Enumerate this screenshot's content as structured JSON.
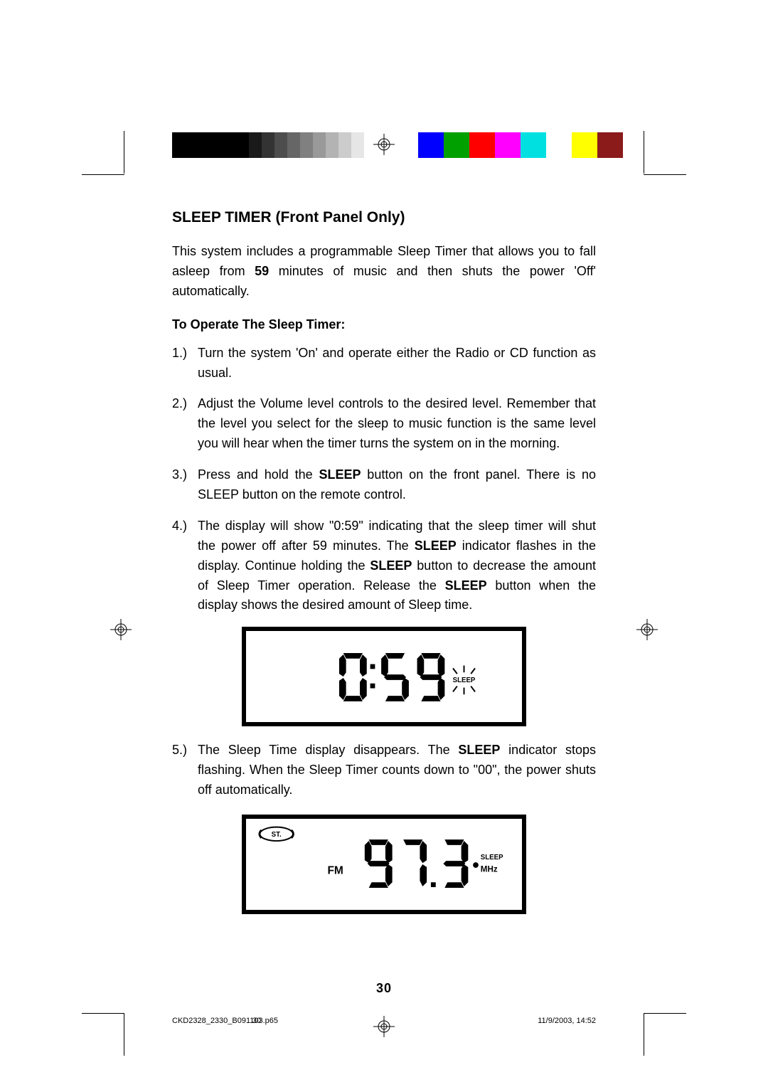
{
  "section_title": "SLEEP TIMER (Front Panel Only)",
  "intro_prefix": "This system includes a programmable Sleep Timer that allows you to fall asleep from ",
  "intro_bold": "59",
  "intro_suffix": " minutes of music and then shuts the power 'Off' automatically.",
  "subheading": "To Operate The Sleep Timer:",
  "steps": {
    "s1_num": "1.)",
    "s1": "Turn the system 'On' and operate either the Radio or CD function as usual.",
    "s2_num": "2.)",
    "s2": "Adjust the Volume level controls to the desired level. Remember that the level you select for the sleep to music function is the same level you will hear when the timer turns the system on in the morning.",
    "s3_num": "3.)",
    "s3_a": "Press and hold the ",
    "s3_b": "SLEEP",
    "s3_c": " button on the front panel. There is no SLEEP button on the remote control.",
    "s4_num": "4.)",
    "s4_a": "The display will show \"0:59\" indicating that the sleep timer will shut the power off after 59 minutes. The ",
    "s4_b": "SLEEP",
    "s4_c": " indicator flashes in the display. Continue holding the ",
    "s4_d": "SLEEP",
    "s4_e": " button to decrease the amount of Sleep Timer operation. Release the ",
    "s4_f": "SLEEP",
    "s4_g": " button when the display shows the desired amount of Sleep time.",
    "s5_num": "5.)",
    "s5_a": "The Sleep Time display disappears. The ",
    "s5_b": "SLEEP",
    "s5_c": " indicator stops flashing. When the Sleep Timer counts down to \"00\", the power shuts off automatically."
  },
  "lcd1": {
    "digits": "0:59",
    "sleep_label": "SLEEP"
  },
  "lcd2": {
    "st_label": "ST.",
    "fm_label": "FM",
    "digits": "97.3",
    "sleep_label": "SLEEP",
    "mhz_label": "MHz"
  },
  "page_number": "30",
  "footer": {
    "file": "CKD2328_2330_B091103.p65",
    "pg": "30",
    "ts": "11/9/2003, 14:52"
  },
  "colorbar_gray": {
    "widths": [
      72,
      36,
      18,
      18,
      18,
      18,
      18,
      18,
      18,
      18,
      18
    ],
    "colors": [
      "#000000",
      "#000000",
      "#1a1a1a",
      "#333333",
      "#4d4d4d",
      "#666666",
      "#808080",
      "#999999",
      "#b3b3b3",
      "#cccccc",
      "#e6e6e6"
    ]
  },
  "colorbar_color": {
    "colors": [
      "#0000ff",
      "#00a000",
      "#ff0000",
      "#ff00ff",
      "#00e0e0",
      "#ffffff",
      "#ffff00",
      "#8b1a1a"
    ]
  },
  "colors": {
    "text": "#000000",
    "bg": "#ffffff",
    "lcd_border": "#000000"
  }
}
